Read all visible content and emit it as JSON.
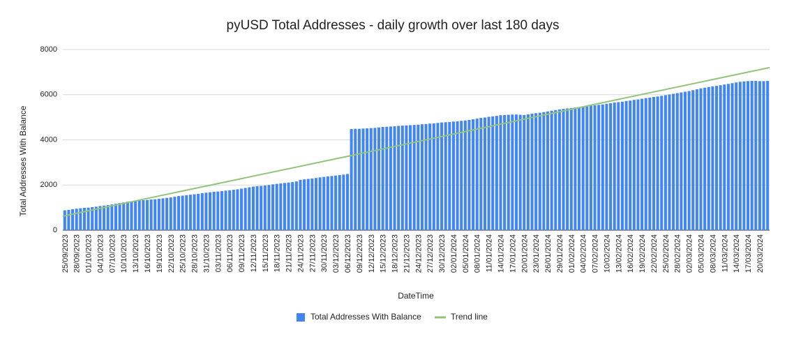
{
  "chart_data": {
    "type": "bar",
    "title": "pyUSD Total Addresses - daily growth over last 180 days",
    "x_label": "DateTime",
    "y_label": "Total Addresses With Balance",
    "ylim": [
      0,
      8000
    ],
    "yticks": [
      0,
      2000,
      4000,
      6000,
      8000
    ],
    "grid": true,
    "legend": "bottom",
    "categories": [
      "25/09/2023",
      null,
      null,
      "28/09/2023",
      null,
      null,
      "01/10/2023",
      null,
      null,
      "04/10/2023",
      null,
      null,
      "07/10/2023",
      null,
      null,
      "10/10/2023",
      null,
      null,
      "13/10/2023",
      null,
      null,
      "16/10/2023",
      null,
      null,
      "19/10/2023",
      null,
      null,
      "22/10/2023",
      null,
      null,
      "25/10/2023",
      null,
      null,
      "28/10/2023",
      null,
      null,
      "31/10/2023",
      null,
      null,
      "03/11/2023",
      null,
      null,
      "06/11/2023",
      null,
      null,
      "09/11/2023",
      null,
      null,
      "12/11/2023",
      null,
      null,
      "15/11/2023",
      null,
      null,
      "18/11/2023",
      null,
      null,
      "21/11/2023",
      null,
      null,
      "24/11/2023",
      null,
      null,
      "27/11/2023",
      null,
      null,
      "30/11/2023",
      null,
      null,
      "03/12/2023",
      null,
      null,
      "06/12/2023",
      null,
      null,
      "09/12/2023",
      null,
      null,
      "12/12/2023",
      null,
      null,
      "15/12/2023",
      null,
      null,
      "18/12/2023",
      null,
      null,
      "21/12/2023",
      null,
      null,
      "24/12/2023",
      null,
      null,
      "27/12/2023",
      null,
      null,
      "30/12/2023",
      null,
      null,
      "02/01/2024",
      null,
      null,
      "05/01/2024",
      null,
      null,
      "08/01/2024",
      null,
      null,
      "11/01/2024",
      null,
      null,
      "14/01/2024",
      null,
      null,
      "17/01/2024",
      null,
      null,
      "20/01/2024",
      null,
      null,
      "23/01/2024",
      null,
      null,
      "26/01/2024",
      null,
      null,
      "29/01/2024",
      null,
      null,
      "01/02/2024",
      null,
      null,
      "04/02/2024",
      null,
      null,
      "07/02/2024",
      null,
      null,
      "10/02/2024",
      null,
      null,
      "13/02/2024",
      null,
      null,
      "16/02/2024",
      null,
      null,
      "19/02/2024",
      null,
      null,
      "22/02/2024",
      null,
      null,
      "25/02/2024",
      null,
      null,
      "28/02/2024",
      null,
      null,
      "02/03/2024",
      null,
      null,
      "05/03/2024",
      null,
      null,
      "08/03/2024",
      null,
      null,
      "11/03/2024",
      null,
      null,
      "14/03/2024",
      null,
      null,
      "17/03/2024",
      null,
      null,
      "20/03/2024",
      null,
      null
    ],
    "series": [
      {
        "name": "Total Addresses With Balance",
        "color": "#4285f4",
        "values": [
          880,
          900,
          930,
          950,
          970,
          990,
          1000,
          1020,
          1040,
          1070,
          1090,
          1110,
          1140,
          1170,
          1200,
          1230,
          1260,
          1280,
          1300,
          1320,
          1330,
          1340,
          1360,
          1370,
          1390,
          1410,
          1430,
          1450,
          1480,
          1510,
          1530,
          1550,
          1570,
          1590,
          1610,
          1640,
          1660,
          1680,
          1700,
          1710,
          1730,
          1750,
          1770,
          1790,
          1810,
          1840,
          1870,
          1900,
          1930,
          1950,
          1960,
          1980,
          2000,
          2030,
          2050,
          2070,
          2090,
          2110,
          2130,
          2160,
          2230,
          2250,
          2270,
          2290,
          2310,
          2340,
          2360,
          2380,
          2400,
          2420,
          2440,
          2460,
          2490,
          4480,
          4490,
          4490,
          4500,
          4510,
          4520,
          4530,
          4550,
          4570,
          4580,
          4590,
          4600,
          4620,
          4630,
          4640,
          4650,
          4660,
          4670,
          4690,
          4700,
          4720,
          4730,
          4750,
          4770,
          4780,
          4790,
          4810,
          4820,
          4840,
          4860,
          4880,
          4910,
          4940,
          4970,
          4990,
          5020,
          5040,
          5060,
          5090,
          5100,
          5110,
          5120,
          5120,
          5110,
          5100,
          5130,
          5160,
          5180,
          5200,
          5230,
          5260,
          5290,
          5320,
          5350,
          5370,
          5390,
          5410,
          5430,
          5450,
          5470,
          5490,
          5510,
          5530,
          5550,
          5570,
          5600,
          5620,
          5650,
          5670,
          5690,
          5720,
          5740,
          5770,
          5790,
          5820,
          5850,
          5870,
          5900,
          5920,
          5950,
          5980,
          6010,
          6040,
          6070,
          6100,
          6130,
          6160,
          6200,
          6240,
          6280,
          6310,
          6340,
          6370,
          6390,
          6420,
          6450,
          6480,
          6510,
          6540,
          6570,
          6590,
          6600,
          6610,
          6610,
          6600,
          6600,
          6610
        ]
      }
    ],
    "trendline": {
      "name": "Trend line",
      "color": "#93c47d",
      "start": 620,
      "end": 7200
    }
  }
}
